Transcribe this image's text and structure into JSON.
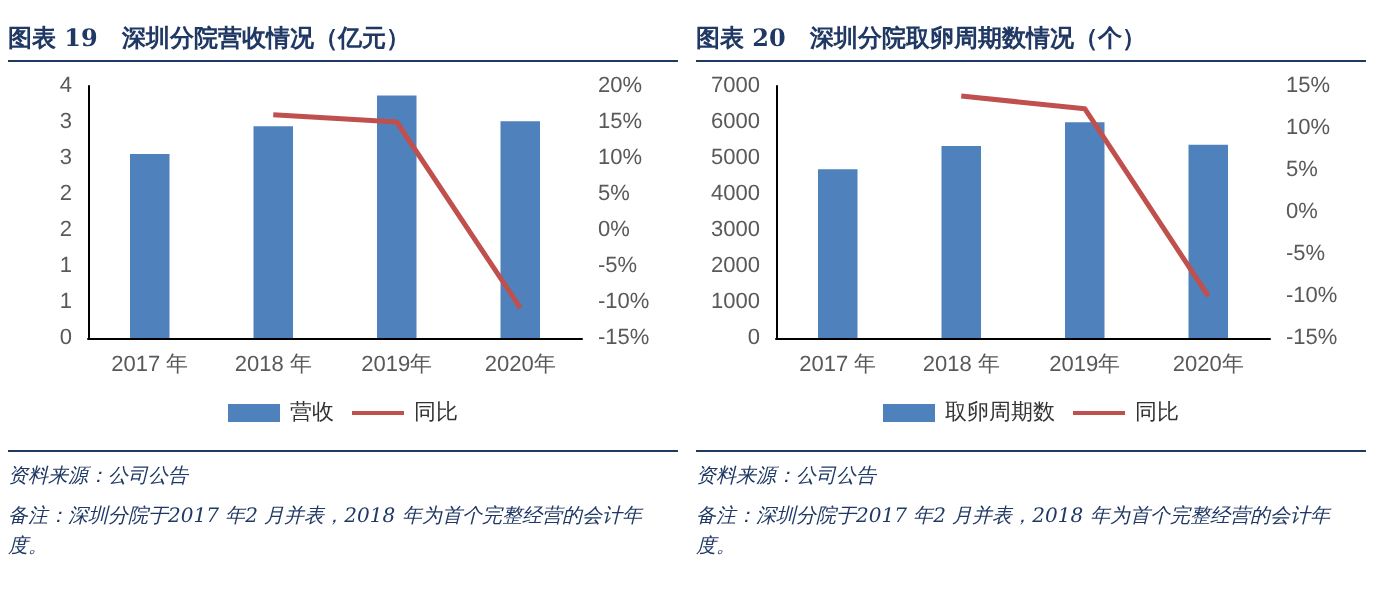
{
  "chart_data": [
    {
      "type": "bar",
      "title": "图表 19　深圳分院营收情况（亿元）",
      "categories": [
        "2017 年",
        "2018 年",
        "2019年",
        "2020年"
      ],
      "series": [
        {
          "name": "营收",
          "color": "#4f81bd",
          "values": [
            2.92,
            3.36,
            3.85,
            3.44
          ]
        },
        {
          "name": "同比",
          "type": "line",
          "axis": "y2",
          "color": "#c0504d",
          "values": [
            null,
            16.0,
            15.0,
            -10.8
          ]
        }
      ],
      "ylim": [
        0,
        4
      ],
      "yticks": [
        0,
        {
          "value": 0.571,
          "label": "1"
        },
        {
          "value": 1.143,
          "label": "1"
        },
        {
          "value": 1.714,
          "label": "2"
        },
        {
          "value": 2.286,
          "label": "2"
        },
        {
          "value": 2.857,
          "label": "3"
        },
        {
          "value": 3.429,
          "label": "3"
        },
        4
      ],
      "y2lim": [
        -15,
        20
      ],
      "y2ticks": [
        {
          "value": -15,
          "label": "-15%"
        },
        {
          "value": -10,
          "label": "-10%"
        },
        {
          "value": -5,
          "label": "-5%"
        },
        {
          "value": 0,
          "label": "0%"
        },
        {
          "value": 5,
          "label": "5%"
        },
        {
          "value": 10,
          "label": "10%"
        },
        {
          "value": 15,
          "label": "15%"
        },
        {
          "value": 20,
          "label": "20%"
        }
      ],
      "grid": false,
      "legend": "bottom",
      "marker": "none",
      "line_style": "solid",
      "annotations": [
        "资料来源：公司公告",
        "备注：深圳分院于2017 年2 月并表，2018 年为首个完整经营的会计年度。"
      ]
    },
    {
      "type": "bar",
      "title": "图表 20　深圳分院取卵周期数情况（个）",
      "categories": [
        "2017 年",
        "2018 年",
        "2019年",
        "2020年"
      ],
      "series": [
        {
          "name": "取卵周期数",
          "color": "#4f81bd",
          "values": [
            4690,
            5330,
            5990,
            5370
          ]
        },
        {
          "name": "同比",
          "type": "line",
          "axis": "y2",
          "color": "#c0504d",
          "values": [
            null,
            13.8,
            12.3,
            -10.0
          ]
        }
      ],
      "ylim": [
        0,
        7000
      ],
      "yticks": [
        0,
        1000,
        2000,
        3000,
        4000,
        5000,
        6000,
        7000
      ],
      "y2lim": [
        -15,
        15
      ],
      "y2ticks": [
        {
          "value": -15,
          "label": "-15%"
        },
        {
          "value": -10,
          "label": "-10%"
        },
        {
          "value": -5,
          "label": "-5%"
        },
        {
          "value": 0,
          "label": "0%"
        },
        {
          "value": 5,
          "label": "5%"
        },
        {
          "value": 10,
          "label": "10%"
        },
        {
          "value": 15,
          "label": "15%"
        }
      ],
      "grid": false,
      "legend": "bottom",
      "marker": "none",
      "line_style": "solid",
      "annotations": [
        "资料来源：公司公告",
        "备注：深圳分院于2017 年2 月并表，2018 年为首个完整经营的会计年度。"
      ]
    }
  ]
}
